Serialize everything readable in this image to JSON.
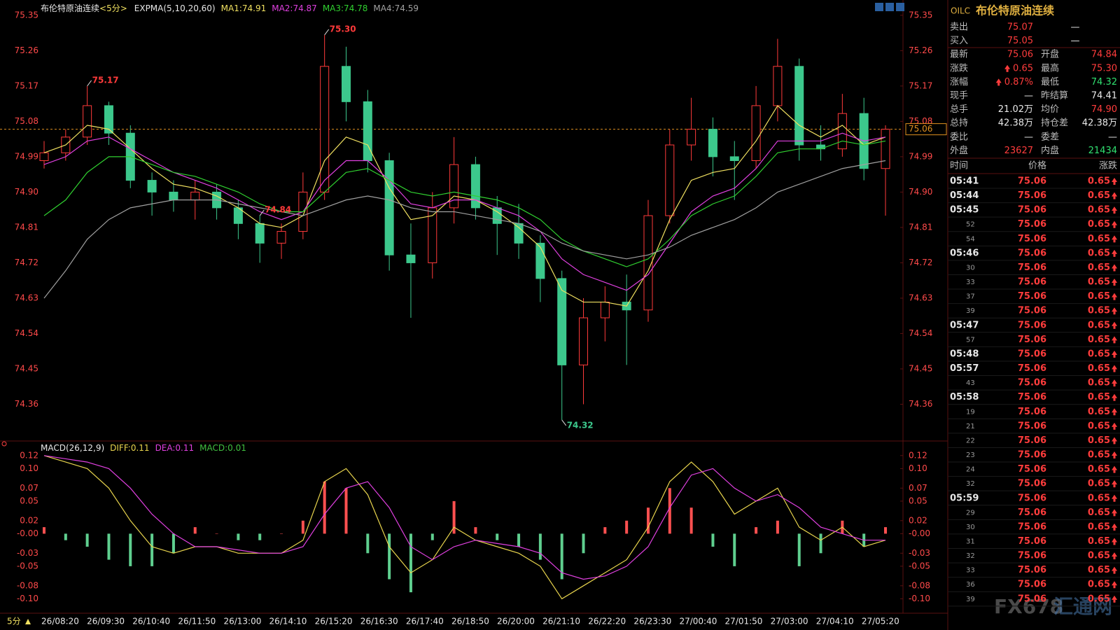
{
  "chart_data": [
    {
      "type": "candlestick",
      "title": "布伦特原油连续",
      "period": "<5分>",
      "indicator": "EXPMA(5,10,20,60)",
      "open": [
        74.98,
        75.0,
        75.04,
        75.12,
        75.05,
        74.93,
        74.9,
        74.88,
        74.9,
        74.86,
        74.82,
        74.77,
        74.8,
        74.9,
        75.22,
        75.13,
        74.98,
        74.74,
        74.72,
        74.86,
        74.97,
        74.86,
        74.82,
        74.77,
        74.68,
        74.46,
        74.58,
        74.62,
        74.6,
        74.84,
        75.02,
        75.06,
        74.99,
        74.98,
        75.12,
        75.22,
        75.02,
        75.01,
        75.1,
        74.96
      ],
      "high": [
        75.03,
        75.06,
        75.17,
        75.13,
        75.07,
        74.95,
        74.93,
        74.93,
        74.92,
        74.88,
        74.84,
        74.82,
        74.95,
        75.3,
        75.27,
        75.16,
        75.0,
        74.82,
        74.9,
        75.04,
        74.99,
        74.89,
        74.87,
        74.79,
        74.7,
        74.63,
        74.66,
        74.69,
        74.88,
        75.06,
        75.14,
        75.09,
        75.03,
        75.17,
        75.29,
        75.24,
        75.07,
        75.15,
        75.14,
        75.07
      ],
      "low": [
        74.96,
        74.98,
        75.02,
        75.02,
        74.91,
        74.84,
        74.85,
        74.83,
        74.83,
        74.78,
        74.72,
        74.73,
        74.78,
        74.88,
        75.08,
        74.95,
        74.7,
        74.58,
        74.68,
        74.82,
        74.83,
        74.74,
        74.73,
        74.62,
        74.32,
        74.36,
        74.52,
        74.46,
        74.57,
        74.82,
        74.98,
        74.94,
        74.88,
        74.96,
        75.08,
        74.98,
        74.98,
        74.99,
        74.93,
        74.84
      ],
      "close": [
        75.0,
        75.04,
        75.12,
        75.05,
        74.93,
        74.9,
        74.88,
        74.9,
        74.86,
        74.82,
        74.77,
        74.8,
        74.9,
        75.22,
        75.13,
        74.98,
        74.74,
        74.72,
        74.86,
        74.97,
        74.86,
        74.82,
        74.77,
        74.68,
        74.46,
        74.58,
        74.62,
        74.6,
        74.84,
        75.02,
        75.06,
        74.99,
        74.98,
        75.12,
        75.22,
        75.02,
        75.01,
        75.1,
        74.96,
        75.06
      ],
      "up_color": "#ff3a3a",
      "down_color": "#3cc88c",
      "series": [
        {
          "name": "MA1:74.91",
          "color": "#f0e060",
          "values": [
            75.0,
            75.02,
            75.07,
            75.06,
            75.01,
            74.96,
            74.92,
            74.91,
            74.89,
            74.86,
            74.82,
            74.81,
            74.84,
            74.98,
            75.04,
            75.02,
            74.91,
            74.83,
            74.84,
            74.89,
            74.88,
            74.85,
            74.81,
            74.76,
            74.65,
            74.62,
            74.62,
            74.61,
            74.7,
            74.83,
            74.93,
            74.95,
            74.96,
            75.03,
            75.12,
            75.07,
            75.04,
            75.07,
            75.02,
            75.04
          ]
        },
        {
          "name": "MA2:74.87",
          "color": "#e040e0",
          "values": [
            74.97,
            74.99,
            75.03,
            75.04,
            75.01,
            74.98,
            74.95,
            74.93,
            74.91,
            74.88,
            74.85,
            74.83,
            74.85,
            74.93,
            74.98,
            74.98,
            74.93,
            74.87,
            74.86,
            74.88,
            74.88,
            74.86,
            74.84,
            74.8,
            74.73,
            74.69,
            74.67,
            74.65,
            74.69,
            74.77,
            74.85,
            74.89,
            74.91,
            74.96,
            75.03,
            75.03,
            75.03,
            75.05,
            75.03,
            75.04
          ]
        },
        {
          "name": "MA3:74.78",
          "color": "#30d030",
          "values": [
            74.84,
            74.88,
            74.95,
            74.99,
            74.99,
            74.97,
            74.95,
            74.94,
            74.92,
            74.9,
            74.87,
            74.85,
            74.85,
            74.9,
            74.95,
            74.96,
            74.93,
            74.9,
            74.89,
            74.9,
            74.89,
            74.88,
            74.86,
            74.83,
            74.78,
            74.75,
            74.73,
            74.71,
            74.73,
            74.78,
            74.84,
            74.87,
            74.89,
            74.94,
            75.0,
            75.01,
            75.01,
            75.03,
            75.02,
            75.03
          ]
        },
        {
          "name": "MA4:74.59",
          "color": "#a0a0a0",
          "values": [
            74.63,
            74.7,
            74.78,
            74.83,
            74.86,
            74.87,
            74.88,
            74.88,
            74.88,
            74.87,
            74.86,
            74.85,
            74.84,
            74.86,
            74.88,
            74.89,
            74.88,
            74.86,
            74.85,
            74.85,
            74.84,
            74.83,
            74.82,
            74.8,
            74.77,
            74.75,
            74.74,
            74.73,
            74.74,
            74.76,
            74.79,
            74.81,
            74.83,
            74.86,
            74.9,
            74.92,
            74.94,
            74.96,
            74.97,
            74.98
          ]
        }
      ],
      "ylim": [
        74.27,
        75.38
      ],
      "yticks": [
        75.35,
        75.26,
        75.17,
        75.08,
        74.99,
        {
          "value": 74.9,
          "label": "74.90"
        },
        74.81,
        74.72,
        74.63,
        74.54,
        74.45,
        74.36
      ],
      "annotations": [
        75.17,
        {
          "value": 75.3,
          "label": "75.30"
        },
        74.32,
        74.84
      ],
      "last_price": {
        "value": 75.06,
        "label": "75.06",
        "color": "#e09020"
      }
    },
    {
      "type": "macd",
      "title": "MACD(26,12,9)",
      "series": [
        {
          "name": "DIFF:0.11",
          "color": "#e8d44d",
          "values": [
            0.12,
            0.11,
            0.1,
            0.07,
            0.02,
            -0.02,
            -0.03,
            -0.02,
            -0.02,
            -0.03,
            -0.03,
            -0.03,
            -0.01,
            0.08,
            0.1,
            0.06,
            -0.02,
            -0.06,
            -0.04,
            0.01,
            -0.01,
            -0.02,
            -0.03,
            -0.05,
            -0.1,
            -0.08,
            -0.06,
            -0.04,
            0.01,
            0.08,
            0.11,
            0.08,
            0.03,
            0.05,
            0.07,
            0.01,
            -0.01,
            0.01,
            -0.02,
            -0.01
          ]
        },
        {
          "name": "DEA:0.11",
          "color": "#e040e0",
          "values": [
            0.12,
            0.115,
            0.11,
            0.1,
            0.07,
            0.03,
            0.0,
            -0.02,
            -0.02,
            -0.025,
            -0.03,
            -0.03,
            -0.02,
            0.03,
            0.07,
            0.08,
            0.04,
            -0.02,
            -0.04,
            -0.02,
            -0.01,
            -0.015,
            -0.02,
            -0.03,
            -0.06,
            -0.07,
            -0.065,
            -0.05,
            -0.02,
            0.04,
            0.09,
            0.1,
            0.07,
            0.05,
            0.06,
            0.04,
            0.01,
            0.0,
            -0.01,
            -0.01
          ]
        }
      ],
      "histogram": {
        "name": "MACD:0.01",
        "color": "#40c040",
        "up_color": "#ff5050",
        "down_color": "#5fcf8f",
        "values": [
          0.01,
          -0.01,
          -0.02,
          -0.04,
          -0.05,
          -0.05,
          -0.03,
          0.01,
          0.0,
          -0.01,
          -0.01,
          0.0,
          0.02,
          0.08,
          0.07,
          -0.03,
          -0.07,
          -0.09,
          -0.01,
          0.05,
          0.01,
          -0.01,
          -0.02,
          -0.04,
          -0.07,
          -0.03,
          0.01,
          0.02,
          0.04,
          0.07,
          0.04,
          -0.02,
          -0.05,
          0.01,
          0.02,
          -0.05,
          -0.03,
          0.02,
          -0.02,
          0.01
        ]
      },
      "ylim": [
        -0.12,
        0.137
      ],
      "yticks": [
        0.12,
        {
          "value": 0.1,
          "label": "0.10"
        },
        0.07,
        0.05,
        0.02,
        {
          "value": 0,
          "label": "-0.00"
        },
        -0.03,
        -0.05,
        -0.08,
        {
          "value": -0.1,
          "label": "-0.10"
        }
      ],
      "x_labels": [
        "26/08:20",
        "26/09:30",
        "26/10:40",
        "26/11:50",
        "26/13:00",
        "26/14:10",
        "26/15:20",
        "26/16:30",
        "26/17:40",
        "26/18:50",
        "26/20:00",
        "26/21:10",
        "26/22:20",
        "26/23:30",
        "27/00:40",
        "27/01:50",
        "27/03:00",
        "27/04:10",
        "27/05:20"
      ]
    }
  ],
  "period_button": "5分",
  "watermark": {
    "brand": "FX678",
    "name": "汇通网"
  },
  "quote": {
    "code": "OILC",
    "name": "布伦特原油连续",
    "rows": [
      {
        "cells": [
          "卖出",
          "75.07",
          "—"
        ],
        "colors": [
          "#bdbdbd",
          "#ff3c3c",
          "#e8e8e8"
        ]
      },
      {
        "cells": [
          "买入",
          "75.05",
          "—"
        ],
        "colors": [
          "#bdbdbd",
          "#ff3c3c",
          "#e8e8e8"
        ]
      },
      {
        "cells": [
          "最新",
          "75.06",
          "开盘",
          "74.84"
        ],
        "colors": [
          "#bdbdbd",
          "#ff3c3c",
          "#bdbdbd",
          "#ff3c3c"
        ]
      },
      {
        "cells": [
          "涨跌",
          "0.65",
          "最高",
          "75.30"
        ],
        "colors": [
          "#bdbdbd",
          "#ff3c3c",
          "#bdbdbd",
          "#ff3c3c"
        ],
        "arrow": true
      },
      {
        "cells": [
          "涨幅",
          "0.87%",
          "最低",
          "74.32"
        ],
        "colors": [
          "#bdbdbd",
          "#ff3c3c",
          "#bdbdbd",
          "#30e070"
        ],
        "arrow": true
      },
      {
        "cells": [
          "现手",
          "—",
          "昨结算",
          "74.41"
        ],
        "colors": [
          "#bdbdbd",
          "#e8e8e8",
          "#bdbdbd",
          "#e8e8e8"
        ]
      },
      {
        "cells": [
          "总手",
          "21.02万",
          "均价",
          "74.90"
        ],
        "colors": [
          "#bdbdbd",
          "#e8e8e8",
          "#bdbdbd",
          "#ff3c3c"
        ]
      },
      {
        "cells": [
          "总持",
          "42.38万",
          "持仓差",
          "42.38万"
        ],
        "colors": [
          "#bdbdbd",
          "#e8e8e8",
          "#bdbdbd",
          "#e8e8e8"
        ]
      },
      {
        "cells": [
          "委比",
          "—",
          "委差",
          "—"
        ],
        "colors": [
          "#bdbdbd",
          "#e8e8e8",
          "#bdbdbd",
          "#e8e8e8"
        ]
      },
      {
        "cells": [
          "外盘",
          "23627",
          "内盘",
          "21434"
        ],
        "colors": [
          "#bdbdbd",
          "#ff3c3c",
          "#bdbdbd",
          "#30e070"
        ]
      }
    ]
  },
  "ticks": {
    "header": [
      "时间",
      "价格",
      "涨跌"
    ],
    "rows": [
      [
        "05:41",
        "75.06",
        "0.65"
      ],
      [
        "05:44",
        "75.06",
        "0.65"
      ],
      [
        "05:45",
        "75.06",
        "0.65"
      ],
      [
        "52",
        "75.06",
        "0.65"
      ],
      [
        "54",
        "75.06",
        "0.65"
      ],
      [
        "05:46",
        "75.06",
        "0.65"
      ],
      [
        "30",
        "75.06",
        "0.65"
      ],
      [
        "33",
        "75.06",
        "0.65"
      ],
      [
        "37",
        "75.06",
        "0.65"
      ],
      [
        "39",
        "75.06",
        "0.65"
      ],
      [
        "05:47",
        "75.06",
        "0.65"
      ],
      [
        "57",
        "75.06",
        "0.65"
      ],
      [
        "05:48",
        "75.06",
        "0.65"
      ],
      [
        "05:57",
        "75.06",
        "0.65"
      ],
      [
        "43",
        "75.06",
        "0.65"
      ],
      [
        "05:58",
        "75.06",
        "0.65"
      ],
      [
        "19",
        "75.06",
        "0.65"
      ],
      [
        "21",
        "75.06",
        "0.65"
      ],
      [
        "22",
        "75.06",
        "0.65"
      ],
      [
        "23",
        "75.06",
        "0.65"
      ],
      [
        "24",
        "75.06",
        "0.65"
      ],
      [
        "32",
        "75.06",
        "0.65"
      ],
      [
        "05:59",
        "75.06",
        "0.65"
      ],
      [
        "29",
        "75.06",
        "0.65"
      ],
      [
        "30",
        "75.06",
        "0.65"
      ],
      [
        "31",
        "75.06",
        "0.65"
      ],
      [
        "32",
        "75.06",
        "0.65"
      ],
      [
        "33",
        "75.06",
        "0.65"
      ],
      [
        "36",
        "75.06",
        "0.65"
      ],
      [
        "39",
        "75.06",
        "0.65"
      ]
    ]
  }
}
